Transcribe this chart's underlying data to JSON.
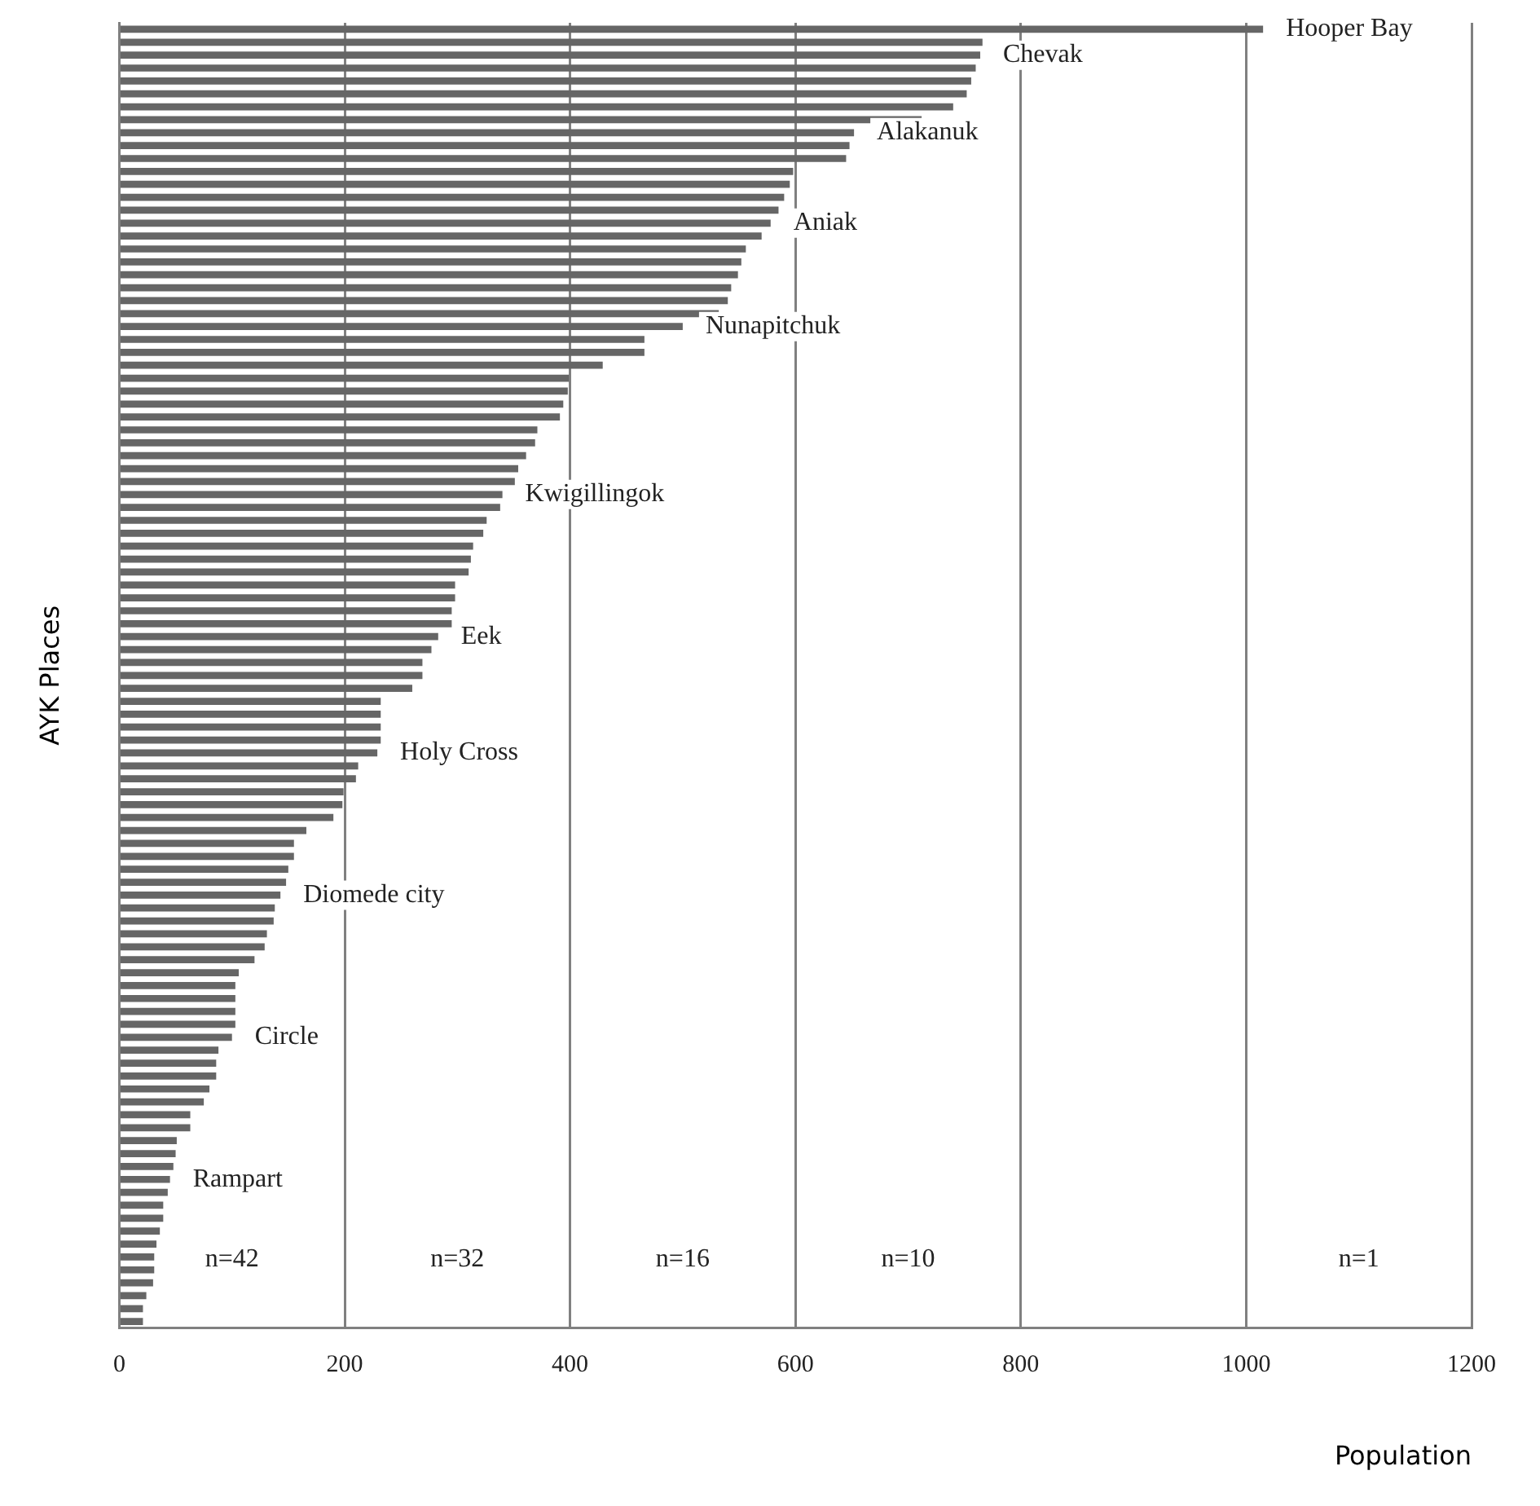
{
  "chart_data": {
    "type": "bar",
    "orientation": "horizontal",
    "xlabel": "Population",
    "ylabel": "AYK Places",
    "categories": [
      "Hooper Bay",
      null,
      "Chevak",
      null,
      null,
      null,
      null,
      null,
      "Alakanuk",
      null,
      null,
      null,
      null,
      null,
      null,
      "Aniak",
      null,
      null,
      null,
      null,
      null,
      null,
      null,
      "Nunapitchuk",
      null,
      null,
      null,
      null,
      null,
      null,
      null,
      null,
      null,
      null,
      null,
      null,
      "Kwigillingok",
      null,
      null,
      null,
      null,
      null,
      null,
      null,
      null,
      null,
      null,
      "Eek",
      null,
      null,
      null,
      null,
      null,
      null,
      null,
      null,
      "Holy Cross",
      null,
      null,
      null,
      null,
      null,
      null,
      null,
      null,
      null,
      null,
      "Diomede city",
      null,
      null,
      null,
      null,
      null,
      null,
      null,
      null,
      null,
      null,
      "Circle",
      null,
      null,
      null,
      null,
      null,
      null,
      null,
      null,
      null,
      null,
      "Rampart",
      null,
      null,
      null,
      null,
      null,
      null,
      null,
      null,
      null,
      null,
      null
    ],
    "values": [
      1015,
      766,
      764,
      760,
      756,
      752,
      740,
      712,
      652,
      648,
      645,
      598,
      595,
      590,
      585,
      578,
      570,
      556,
      552,
      549,
      543,
      540,
      532,
      500,
      466,
      466,
      429,
      399,
      398,
      394,
      391,
      371,
      369,
      361,
      354,
      351,
      340,
      338,
      326,
      323,
      314,
      312,
      310,
      298,
      298,
      295,
      295,
      283,
      277,
      269,
      269,
      260,
      232,
      232,
      232,
      232,
      229,
      212,
      210,
      199,
      198,
      190,
      166,
      155,
      155,
      150,
      148,
      143,
      138,
      137,
      131,
      129,
      120,
      106,
      103,
      103,
      103,
      103,
      100,
      88,
      86,
      86,
      80,
      75,
      63,
      63,
      51,
      50,
      48,
      45,
      43,
      39,
      39,
      36,
      33,
      31,
      31,
      30,
      24,
      21,
      21
    ],
    "color": "#666666",
    "xlim": [
      0,
      1200
    ],
    "xticks": [
      0,
      200,
      400,
      600,
      800,
      1000,
      1200
    ],
    "grid": "x",
    "tick_labels": "x",
    "annotations": [
      "n=42",
      "n=32",
      "n=16",
      "n=10",
      "n=1"
    ]
  }
}
